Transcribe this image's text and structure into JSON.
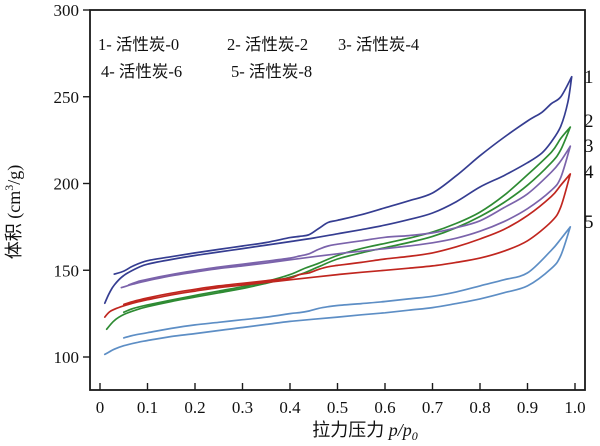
{
  "figure": {
    "background": "#ffffff",
    "axis_color": "#1a1a1a",
    "text_color": "#111111"
  },
  "chart_data": {
    "type": "line",
    "title": "",
    "xlabel": {
      "cn": "拉力压力",
      "math_main": "p/p",
      "math_sub": "0"
    },
    "ylabel": {
      "prefix": "体积 (cm",
      "sup": "3",
      "suffix": "/g)"
    },
    "xlim": [
      0,
      1.0
    ],
    "ylim": [
      100,
      300
    ],
    "grid": false,
    "legend_position": "top-left-inside",
    "x_tick_values": [
      0,
      0.1,
      0.2,
      0.3,
      0.4,
      0.5,
      0.6,
      0.7,
      0.8,
      0.9,
      1.0
    ],
    "x_ticks": [
      "0",
      "0.1",
      "0.2",
      "0.3",
      "0.4",
      "0.5",
      "0.6",
      "0.7",
      "0.8",
      "0.9",
      "1.0"
    ],
    "y_tick_values": [
      100,
      150,
      200,
      250,
      300
    ],
    "y_ticks": [
      "100",
      "150",
      "200",
      "250",
      "300"
    ],
    "legend_rows": [
      [
        "1- 活性炭-0",
        "2- 活性炭-2",
        "3- 活性炭-4"
      ],
      [
        "4- 活性炭-6",
        "5- 活性炭-8"
      ]
    ],
    "series": [
      {
        "label": "1",
        "name": "活性炭-0",
        "color": "#353d91",
        "adsorption": [
          [
            0.01,
            131
          ],
          [
            0.02,
            137
          ],
          [
            0.03,
            141.5
          ],
          [
            0.05,
            147
          ],
          [
            0.08,
            151.5
          ],
          [
            0.1,
            153.5
          ],
          [
            0.15,
            156.2
          ],
          [
            0.2,
            158.5
          ],
          [
            0.25,
            160.5
          ],
          [
            0.3,
            162.5
          ],
          [
            0.35,
            164.5
          ],
          [
            0.4,
            166.5
          ],
          [
            0.45,
            168.6
          ],
          [
            0.5,
            171
          ],
          [
            0.55,
            173.4
          ],
          [
            0.6,
            176
          ],
          [
            0.65,
            179.2
          ],
          [
            0.7,
            183
          ],
          [
            0.75,
            189.5
          ],
          [
            0.8,
            198
          ],
          [
            0.85,
            204.5
          ],
          [
            0.9,
            212
          ],
          [
            0.93,
            217.5
          ],
          [
            0.95,
            224
          ],
          [
            0.97,
            233
          ],
          [
            0.985,
            247
          ],
          [
            0.993,
            261.5
          ]
        ],
        "desorption": [
          [
            0.993,
            261.5
          ],
          [
            0.97,
            250
          ],
          [
            0.95,
            246
          ],
          [
            0.93,
            241
          ],
          [
            0.9,
            236
          ],
          [
            0.85,
            226.5
          ],
          [
            0.8,
            216
          ],
          [
            0.75,
            204.5
          ],
          [
            0.7,
            194.5
          ],
          [
            0.65,
            190
          ],
          [
            0.6,
            186
          ],
          [
            0.55,
            182
          ],
          [
            0.5,
            178.8
          ],
          [
            0.48,
            177.5
          ],
          [
            0.46,
            174
          ],
          [
            0.44,
            170.5
          ],
          [
            0.42,
            169.5
          ],
          [
            0.4,
            168.8
          ],
          [
            0.35,
            166
          ],
          [
            0.3,
            164
          ],
          [
            0.25,
            162
          ],
          [
            0.2,
            160
          ],
          [
            0.15,
            157.8
          ],
          [
            0.1,
            155.5
          ],
          [
            0.07,
            152.5
          ],
          [
            0.05,
            149.5
          ],
          [
            0.03,
            147.8
          ]
        ]
      },
      {
        "label": "2",
        "name": "活性炭-2",
        "color": "#2e8b33",
        "adsorption": [
          [
            0.014,
            116
          ],
          [
            0.03,
            121
          ],
          [
            0.05,
            124.5
          ],
          [
            0.08,
            127.5
          ],
          [
            0.1,
            129
          ],
          [
            0.15,
            132
          ],
          [
            0.2,
            134.5
          ],
          [
            0.25,
            137
          ],
          [
            0.3,
            139.5
          ],
          [
            0.35,
            142.5
          ],
          [
            0.4,
            146
          ],
          [
            0.43,
            148.5
          ],
          [
            0.46,
            152
          ],
          [
            0.5,
            156.5
          ],
          [
            0.55,
            160
          ],
          [
            0.6,
            163
          ],
          [
            0.65,
            166
          ],
          [
            0.7,
            169.5
          ],
          [
            0.75,
            174.5
          ],
          [
            0.8,
            181
          ],
          [
            0.85,
            189
          ],
          [
            0.9,
            199
          ],
          [
            0.95,
            212
          ],
          [
            0.97,
            219.5
          ],
          [
            0.99,
            232.5
          ]
        ],
        "desorption": [
          [
            0.99,
            232.5
          ],
          [
            0.97,
            226
          ],
          [
            0.95,
            218
          ],
          [
            0.9,
            205
          ],
          [
            0.85,
            193
          ],
          [
            0.8,
            183.5
          ],
          [
            0.75,
            177
          ],
          [
            0.7,
            172
          ],
          [
            0.65,
            168.5
          ],
          [
            0.6,
            165.5
          ],
          [
            0.55,
            162.5
          ],
          [
            0.5,
            158.5
          ],
          [
            0.46,
            154
          ],
          [
            0.43,
            151
          ],
          [
            0.4,
            147.5
          ],
          [
            0.35,
            143.5
          ],
          [
            0.3,
            140.5
          ],
          [
            0.25,
            138
          ],
          [
            0.2,
            135.5
          ],
          [
            0.15,
            132.8
          ],
          [
            0.1,
            130
          ],
          [
            0.07,
            128
          ],
          [
            0.05,
            125.8
          ]
        ]
      },
      {
        "label": "3",
        "name": "活性炭-4",
        "color": "#7b63ab",
        "adsorption": [
          [
            0.045,
            140
          ],
          [
            0.07,
            142
          ],
          [
            0.1,
            144
          ],
          [
            0.15,
            146.8
          ],
          [
            0.2,
            149
          ],
          [
            0.25,
            151
          ],
          [
            0.3,
            152.5
          ],
          [
            0.35,
            154.2
          ],
          [
            0.4,
            156
          ],
          [
            0.45,
            157.8
          ],
          [
            0.5,
            159.5
          ],
          [
            0.55,
            161
          ],
          [
            0.6,
            162.5
          ],
          [
            0.65,
            164
          ],
          [
            0.7,
            165.8
          ],
          [
            0.75,
            168.5
          ],
          [
            0.8,
            172.5
          ],
          [
            0.85,
            178
          ],
          [
            0.9,
            185.5
          ],
          [
            0.95,
            196
          ],
          [
            0.97,
            203.5
          ],
          [
            0.99,
            221.5
          ]
        ],
        "desorption": [
          [
            0.99,
            221.5
          ],
          [
            0.97,
            213
          ],
          [
            0.95,
            206.5
          ],
          [
            0.9,
            194
          ],
          [
            0.85,
            186
          ],
          [
            0.8,
            178.5
          ],
          [
            0.75,
            174.5
          ],
          [
            0.7,
            171.5
          ],
          [
            0.65,
            170
          ],
          [
            0.6,
            169
          ],
          [
            0.55,
            167
          ],
          [
            0.5,
            165
          ],
          [
            0.48,
            164
          ],
          [
            0.46,
            162
          ],
          [
            0.44,
            159.5
          ],
          [
            0.42,
            158.2
          ],
          [
            0.4,
            157
          ],
          [
            0.35,
            155.2
          ],
          [
            0.3,
            153.5
          ],
          [
            0.25,
            151.8
          ],
          [
            0.2,
            149.8
          ],
          [
            0.15,
            147.5
          ],
          [
            0.1,
            144.8
          ],
          [
            0.08,
            143.5
          ],
          [
            0.06,
            141.5
          ]
        ]
      },
      {
        "label": "4",
        "name": "活性炭-6",
        "color": "#c0261f",
        "adsorption": [
          [
            0.01,
            123
          ],
          [
            0.02,
            126
          ],
          [
            0.03,
            127.5
          ],
          [
            0.05,
            129.5
          ],
          [
            0.08,
            131.8
          ],
          [
            0.1,
            133
          ],
          [
            0.15,
            135.8
          ],
          [
            0.2,
            138
          ],
          [
            0.25,
            140
          ],
          [
            0.3,
            141.5
          ],
          [
            0.35,
            143
          ],
          [
            0.4,
            144.5
          ],
          [
            0.45,
            146
          ],
          [
            0.5,
            147.5
          ],
          [
            0.55,
            148.8
          ],
          [
            0.6,
            150
          ],
          [
            0.65,
            151.2
          ],
          [
            0.7,
            152.5
          ],
          [
            0.75,
            154.5
          ],
          [
            0.8,
            157
          ],
          [
            0.85,
            161
          ],
          [
            0.9,
            167
          ],
          [
            0.95,
            178
          ],
          [
            0.97,
            186.5
          ],
          [
            0.99,
            205.5
          ]
        ],
        "desorption": [
          [
            0.99,
            205.5
          ],
          [
            0.97,
            199
          ],
          [
            0.95,
            192.5
          ],
          [
            0.9,
            181.5
          ],
          [
            0.85,
            173.5
          ],
          [
            0.8,
            168
          ],
          [
            0.75,
            163.5
          ],
          [
            0.7,
            160
          ],
          [
            0.65,
            158
          ],
          [
            0.6,
            156.5
          ],
          [
            0.55,
            154.5
          ],
          [
            0.5,
            152.8
          ],
          [
            0.48,
            152
          ],
          [
            0.46,
            150.5
          ],
          [
            0.44,
            148.5
          ],
          [
            0.42,
            147.5
          ],
          [
            0.4,
            145.5
          ],
          [
            0.35,
            144
          ],
          [
            0.3,
            142.5
          ],
          [
            0.25,
            141
          ],
          [
            0.2,
            139
          ],
          [
            0.15,
            136.8
          ],
          [
            0.1,
            134
          ],
          [
            0.07,
            132
          ],
          [
            0.05,
            130.3
          ]
        ]
      },
      {
        "label": "5",
        "name": "活性炭-8",
        "color": "#5d8ec5",
        "adsorption": [
          [
            0.01,
            101.5
          ],
          [
            0.02,
            103
          ],
          [
            0.03,
            104.5
          ],
          [
            0.05,
            106.5
          ],
          [
            0.08,
            108.5
          ],
          [
            0.1,
            109.5
          ],
          [
            0.15,
            111.8
          ],
          [
            0.2,
            113.5
          ],
          [
            0.25,
            115.3
          ],
          [
            0.3,
            117
          ],
          [
            0.35,
            118.8
          ],
          [
            0.4,
            120.5
          ],
          [
            0.45,
            121.8
          ],
          [
            0.5,
            123
          ],
          [
            0.55,
            124.3
          ],
          [
            0.6,
            125.5
          ],
          [
            0.65,
            127
          ],
          [
            0.7,
            128.5
          ],
          [
            0.75,
            130.8
          ],
          [
            0.8,
            133.5
          ],
          [
            0.85,
            137
          ],
          [
            0.9,
            141
          ],
          [
            0.95,
            151
          ],
          [
            0.97,
            158.5
          ],
          [
            0.99,
            175
          ]
        ],
        "desorption": [
          [
            0.99,
            175
          ],
          [
            0.97,
            168
          ],
          [
            0.95,
            161.5
          ],
          [
            0.9,
            148.5
          ],
          [
            0.85,
            144.5
          ],
          [
            0.8,
            141
          ],
          [
            0.75,
            137.5
          ],
          [
            0.7,
            135
          ],
          [
            0.65,
            133.5
          ],
          [
            0.6,
            132
          ],
          [
            0.55,
            130.8
          ],
          [
            0.5,
            129.7
          ],
          [
            0.48,
            129
          ],
          [
            0.46,
            128
          ],
          [
            0.44,
            126.5
          ],
          [
            0.42,
            125.6
          ],
          [
            0.4,
            125
          ],
          [
            0.35,
            123
          ],
          [
            0.3,
            121.5
          ],
          [
            0.25,
            120
          ],
          [
            0.2,
            118.5
          ],
          [
            0.15,
            116.5
          ],
          [
            0.1,
            114
          ],
          [
            0.07,
            112.5
          ],
          [
            0.05,
            111
          ]
        ]
      }
    ]
  }
}
